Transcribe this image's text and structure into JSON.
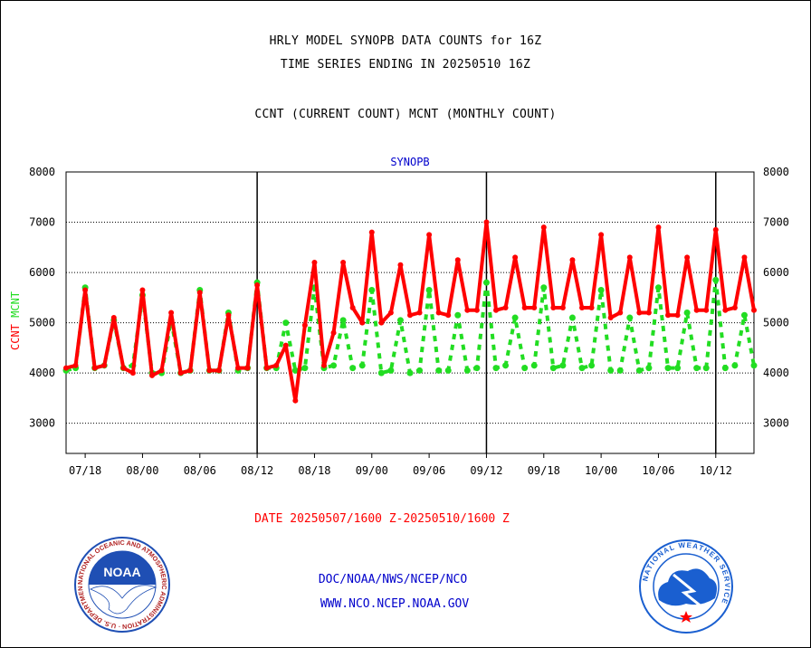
{
  "header": {
    "line1": "HRLY MODEL SYNOPB DATA COUNTS for 16Z",
    "line2": "TIME SERIES ENDING IN 20250510 16Z",
    "line3": "CCNT (CURRENT COUNT) MCNT (MONTHLY COUNT)"
  },
  "footer": {
    "date_range": "DATE 20250507/1600 Z-20250510/1600 Z",
    "link1": "DOC/NOAA/NWS/NCEP/NCO",
    "link2": "WWW.NCO.NCEP.NOAA.GOV"
  },
  "logos": {
    "noaa_text": "NOAA",
    "noaa_ring": "NATIONAL OCEANIC AND ATMOSPHERIC ADMINISTRATION · U.S. DEPARTMENT OF COMMERCE ·",
    "nws_ring": "NATIONAL WEATHER SERVICE"
  },
  "colors": {
    "ccnt": "#ff0000",
    "mcnt": "#22dd22",
    "title_blue": "#0000cc",
    "noaa_blue": "#1f4fb4",
    "nws_blue": "#1a5fd0"
  },
  "chart_data": {
    "type": "line",
    "title": "SYNOPB",
    "ylabel_left": [
      "CCNT",
      "MCNT"
    ],
    "ylim": [
      2400,
      8000
    ],
    "yticks": [
      3000,
      4000,
      5000,
      6000,
      7000,
      8000
    ],
    "x_tick_labels": [
      "07/18",
      "08/00",
      "08/06",
      "08/12",
      "08/18",
      "09/00",
      "09/06",
      "09/12",
      "09/18",
      "10/00",
      "10/06",
      "10/12"
    ],
    "x_tick_hours": [
      2,
      8,
      14,
      20,
      26,
      32,
      38,
      44,
      50,
      56,
      62,
      68
    ],
    "day_boundaries_hours": [
      20,
      44,
      68
    ],
    "x_range_hours": [
      0,
      72
    ],
    "grid": true,
    "series": [
      {
        "name": "CCNT",
        "style": "solid",
        "values": [
          4100,
          4150,
          5650,
          4100,
          4150,
          5100,
          4100,
          4000,
          5650,
          3950,
          4050,
          5200,
          4000,
          4050,
          5600,
          4050,
          4050,
          5150,
          4100,
          4100,
          5750,
          4100,
          4150,
          4550,
          3450,
          4950,
          6200,
          4150,
          4800,
          6200,
          5300,
          5000,
          6800,
          5000,
          5200,
          6150,
          5150,
          5200,
          6750,
          5200,
          5150,
          6250,
          5250,
          5250,
          7000,
          5250,
          5300,
          6300,
          5300,
          5300,
          6900,
          5300,
          5300,
          6250,
          5300,
          5300,
          6750,
          5100,
          5200,
          6300,
          5200,
          5200,
          6900,
          5150,
          5150,
          6300,
          5250,
          5250,
          6850,
          5250,
          5300,
          6300,
          5250
        ]
      },
      {
        "name": "MCNT",
        "style": "dashed",
        "values": [
          4050,
          4100,
          5700,
          4100,
          4150,
          5050,
          4100,
          4150,
          5550,
          4000,
          4000,
          5050,
          4000,
          4050,
          5650,
          4050,
          4050,
          5200,
          4050,
          4100,
          5800,
          4100,
          4100,
          5000,
          4050,
          4100,
          5700,
          4100,
          4150,
          5050,
          4100,
          4150,
          5650,
          4000,
          4050,
          5050,
          4000,
          4050,
          5650,
          4050,
          4050,
          5150,
          4050,
          4100,
          5800,
          4100,
          4150,
          5100,
          4100,
          4150,
          5700,
          4100,
          4150,
          5100,
          4100,
          4150,
          5650,
          4050,
          4050,
          5100,
          4050,
          4100,
          5700,
          4100,
          4100,
          5200,
          4100,
          4100,
          5850,
          4100,
          4150,
          5150,
          4150
        ]
      }
    ]
  }
}
